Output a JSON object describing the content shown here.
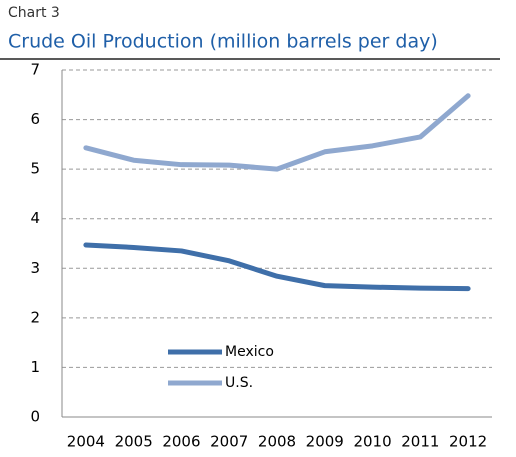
{
  "chart_data": {
    "type": "line",
    "kicker": "Chart 3",
    "title": "Crude Oil Production (million barrels per day)",
    "categories": [
      "2004",
      "2005",
      "2006",
      "2007",
      "2008",
      "2009",
      "2010",
      "2011",
      "2012"
    ],
    "series": [
      {
        "name": "Mexico",
        "color": "#3f6fa9",
        "values": [
          3.47,
          3.42,
          3.35,
          3.15,
          2.84,
          2.65,
          2.62,
          2.6,
          2.59
        ]
      },
      {
        "name": "U.S.",
        "color": "#8fa8cf",
        "values": [
          5.43,
          5.18,
          5.09,
          5.08,
          5.0,
          5.35,
          5.47,
          5.65,
          6.48
        ]
      }
    ],
    "ylim": [
      0,
      7
    ],
    "yticks": [
      0,
      1,
      2,
      3,
      4,
      5,
      6,
      7
    ],
    "grid": true,
    "legend": "lower-left"
  }
}
